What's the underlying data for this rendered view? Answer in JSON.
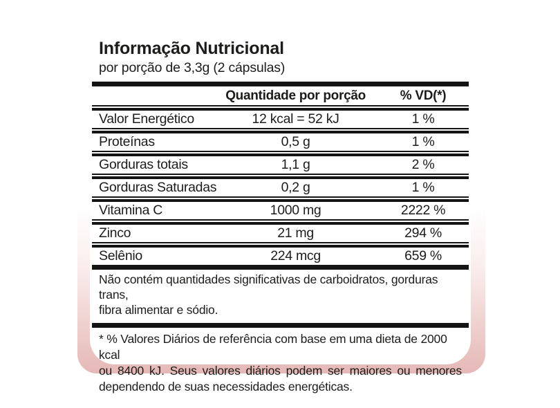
{
  "label": {
    "title": "Informação Nutricional",
    "subtitle": "por porção de 3,3g (2 cápsulas)",
    "table": {
      "header": {
        "quantity": "Quantidade por porção",
        "dv": "% VD(*)"
      },
      "rows": [
        {
          "name": "Valor Energético",
          "quantity": "12 kcal = 52 kJ",
          "dv": "1 %"
        },
        {
          "name": "Proteínas",
          "quantity": "0,5 g",
          "dv": "1 %"
        },
        {
          "name": "Gorduras totais",
          "quantity": "1,1 g",
          "dv": "2 %"
        },
        {
          "name": "Gorduras Saturadas",
          "quantity": "0,2 g",
          "dv": "1 %"
        },
        {
          "name": "Vitamina C",
          "quantity": "1000 mg",
          "dv": "2222 %"
        },
        {
          "name": "Zinco",
          "quantity": "21 mg",
          "dv": "294 %"
        },
        {
          "name": "Selênio",
          "quantity": "224 mcg",
          "dv": "659 %"
        }
      ]
    },
    "note_lines": [
      "Não contém quantidades significativas de carboidratos, gorduras trans,",
      "fibra alimentar e sódio."
    ],
    "footnote_lines": [
      "* % Valores Diários de referência com base em uma dieta de 2000 kcal",
      "ou 8400 kJ. Seus valores diários podem ser maiores ou menores",
      "dependendo de suas necessidades energéticas."
    ]
  },
  "colors": {
    "text": "#1c1c1a",
    "rule_black": "#141414",
    "card_background": "#ffffff",
    "backdrop_pink": "#e5b8b6",
    "backdrop_pink_light": "#faeeed"
  }
}
